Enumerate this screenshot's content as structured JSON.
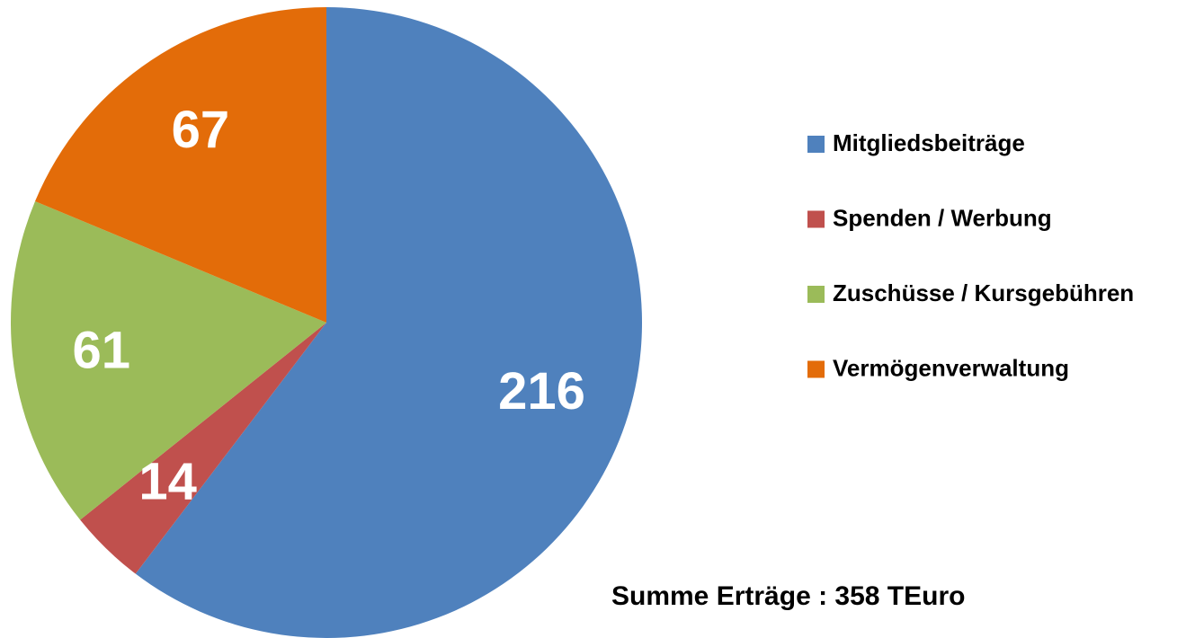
{
  "chart_data": {
    "type": "pie",
    "categories": [
      "Mitgliedsbeiträge",
      "Spenden / Werbung",
      "Zuschüsse / Kursgebühren",
      "Vermögenverwaltung"
    ],
    "values": [
      216,
      14,
      61,
      67
    ],
    "colors": [
      "#4f81bd",
      "#c0504d",
      "#9bbb59",
      "#e36c09"
    ],
    "annotation": "Summe Erträge : 358 TEuro",
    "legend": "right"
  }
}
